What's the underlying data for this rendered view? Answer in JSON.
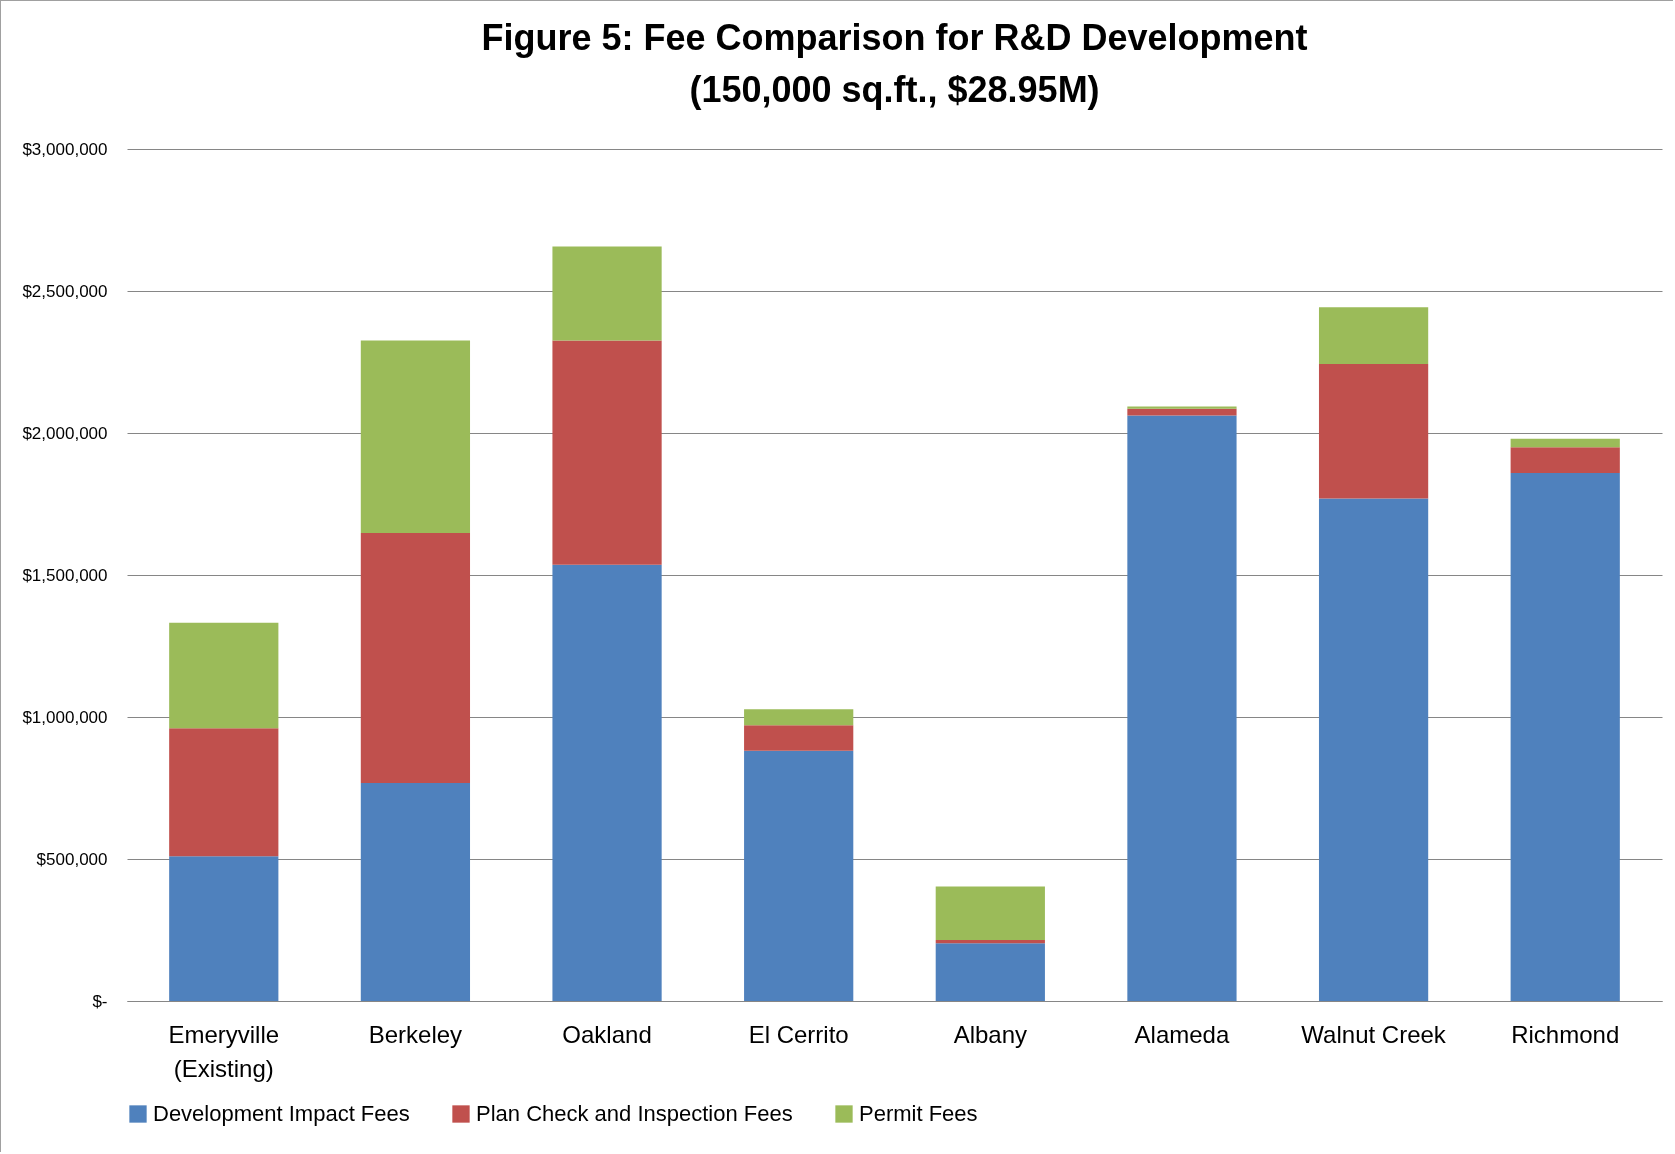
{
  "chart_data": {
    "type": "bar",
    "stacked": true,
    "title": "Figure 5: Fee Comparison for R&D Development\n(150,000 sq.ft., $28.95M)",
    "categories": [
      "Emeryville\n(Existing)",
      "Berkeley",
      "Oakland",
      "El Cerrito",
      "Albany",
      "Alameda",
      "Walnut Creek",
      "Richmond"
    ],
    "series": [
      {
        "name": "Development Impact Fees",
        "color": "#4f81bd",
        "values": [
          510000,
          768000,
          1536000,
          881000,
          203000,
          2062000,
          1769000,
          1859000
        ]
      },
      {
        "name": "Plan Check and Inspection Fees",
        "color": "#c0504d",
        "values": [
          450000,
          880000,
          790000,
          90000,
          12000,
          23000,
          474000,
          91000
        ]
      },
      {
        "name": "Permit Fees",
        "color": "#9bbb59",
        "values": [
          372000,
          678000,
          331000,
          56000,
          188000,
          8000,
          200000,
          30000
        ]
      }
    ],
    "ylim": [
      0,
      3000000
    ],
    "yticks": [
      {
        "value": 0,
        "label": "$-"
      },
      {
        "value": 500000,
        "label": "$500,000"
      },
      {
        "value": 1000000,
        "label": "$1,000,000"
      },
      {
        "value": 1500000,
        "label": "$1,500,000"
      },
      {
        "value": 2000000,
        "label": "$2,000,000"
      },
      {
        "value": 2500000,
        "label": "$2,500,000"
      },
      {
        "value": 3000000,
        "label": "$3,000,000"
      }
    ],
    "grid": "y",
    "legend": "bottom"
  }
}
